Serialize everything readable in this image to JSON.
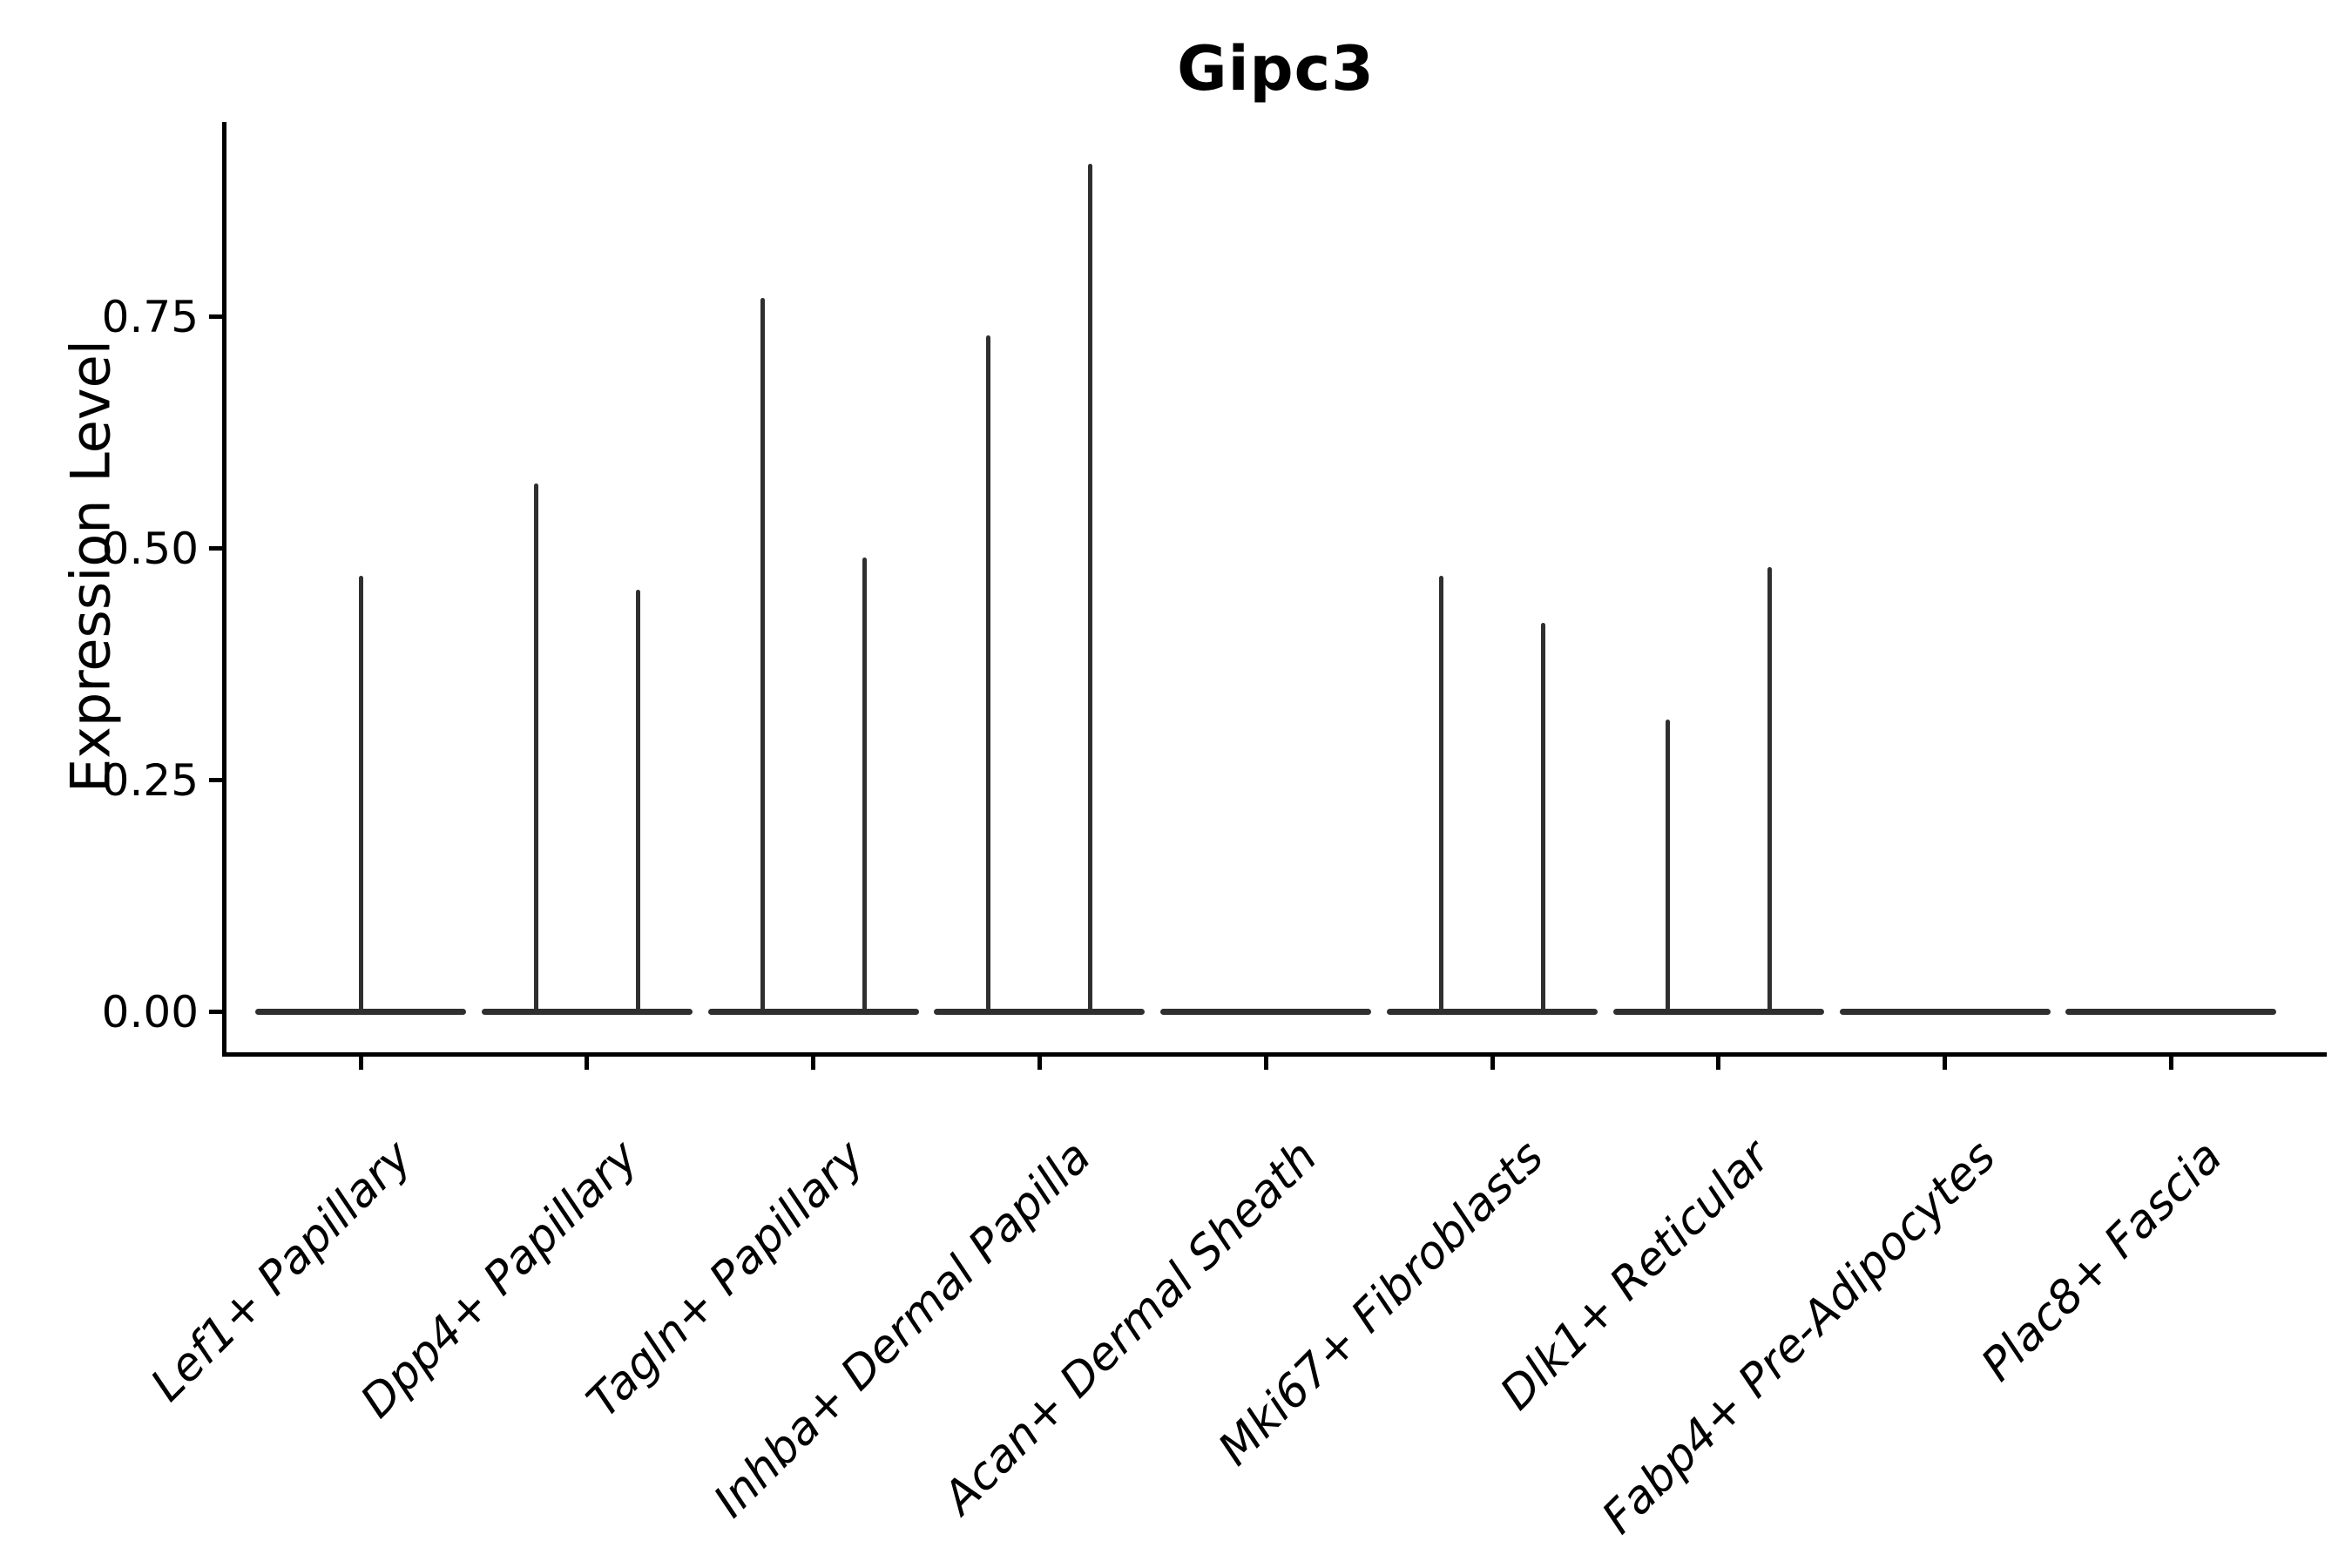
{
  "chart_data": {
    "type": "violin",
    "title": "Gipc3",
    "xlabel": "",
    "ylabel": "Expression Level",
    "categories": [
      "Lef1+ Papillary",
      "Dpp4+ Papillary",
      "Tagln+ Papillary",
      "Inhba+ Dermal Papilla",
      "Acan+ Dermal Sheath",
      "Mki67+ Fibroblasts",
      "Dlk1+ Reticular",
      "Fabp4+ Pre-Adipocytes",
      "Plac8+ Fascia"
    ],
    "series": [
      {
        "category": "Lef1+ Papillary",
        "violin_max_expression": [
          0.47
        ]
      },
      {
        "category": "Dpp4+ Papillary",
        "violin_max_expression": [
          0.57,
          0.455
        ]
      },
      {
        "category": "Tagln+ Papillary",
        "violin_max_expression": [
          0.77,
          0.49
        ]
      },
      {
        "category": "Inhba+ Dermal Papilla",
        "violin_max_expression": [
          0.73,
          0.915
        ]
      },
      {
        "category": "Acan+ Dermal Sheath",
        "violin_max_expression": [
          0.0
        ]
      },
      {
        "category": "Mki67+ Fibroblasts",
        "violin_max_expression": [
          0.47,
          0.42
        ]
      },
      {
        "category": "Dlk1+ Reticular",
        "violin_max_expression": [
          0.315,
          0.48
        ]
      },
      {
        "category": "Fabp4+ Pre-Adipocytes",
        "violin_max_expression": [
          0.0
        ]
      },
      {
        "category": "Plac8+ Fascia",
        "violin_max_expression": [
          0.0
        ]
      }
    ],
    "yticks": [
      0.0,
      0.25,
      0.5,
      0.75
    ],
    "ytick_labels": [
      "0.00",
      "0.25",
      "0.50",
      "0.75"
    ],
    "ylim": [
      -0.05,
      0.96
    ],
    "x_tick_label_angle_deg": 45,
    "grid": false,
    "legend": "none",
    "colors": {
      "violin": "#2f2f2f",
      "axis": "#000000",
      "text": "#000000",
      "background": "#ffffff"
    }
  }
}
